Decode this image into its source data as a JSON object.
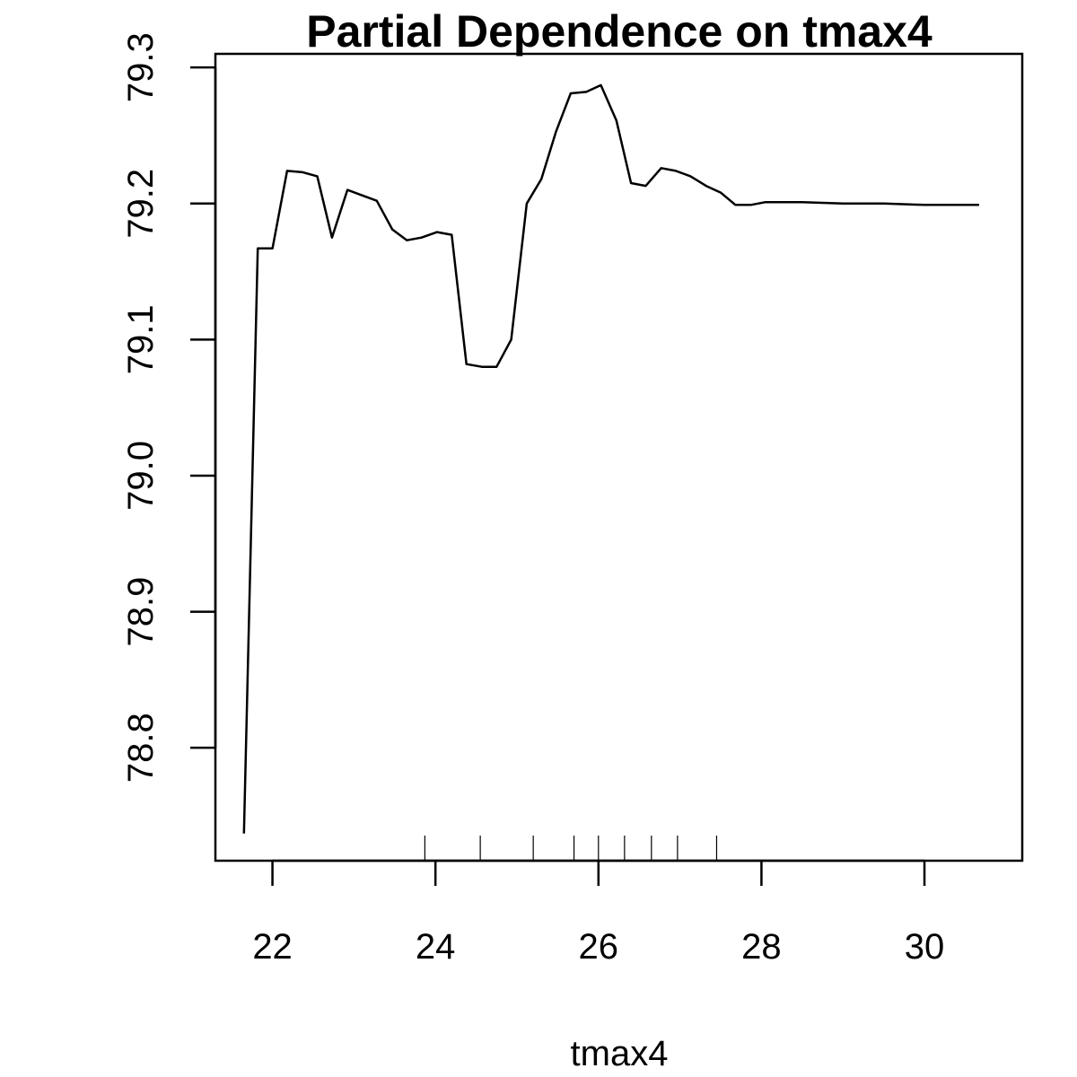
{
  "chart_data": {
    "type": "line",
    "title": "Partial Dependence on tmax4",
    "xlabel": "tmax4",
    "ylabel": "",
    "xlim": [
      21.3,
      31.2
    ],
    "ylim": [
      78.717,
      79.31
    ],
    "x_ticks": [
      22,
      24,
      26,
      28,
      30
    ],
    "y_ticks": [
      78.8,
      78.9,
      79.0,
      79.1,
      79.2,
      79.3
    ],
    "x_tick_labels": [
      "22",
      "24",
      "26",
      "28",
      "30"
    ],
    "y_tick_labels": [
      "78.8",
      "78.9",
      "79.0",
      "79.1",
      "79.2",
      "79.3"
    ],
    "grid": false,
    "series": [
      {
        "x": [
          21.65,
          21.82,
          22.0,
          22.18,
          22.37,
          22.55,
          22.73,
          22.92,
          23.1,
          23.28,
          23.47,
          23.65,
          23.83,
          24.02,
          24.2,
          24.38,
          24.57,
          24.75,
          24.93,
          25.12,
          25.3,
          25.48,
          25.66,
          25.85,
          26.03,
          26.22,
          26.4,
          26.58,
          26.77,
          26.95,
          27.13,
          27.32,
          27.5,
          27.68,
          27.87,
          28.05,
          28.5,
          29.0,
          29.5,
          30.0,
          30.67
        ],
        "y": [
          78.737,
          79.167,
          79.167,
          79.224,
          79.223,
          79.22,
          79.175,
          79.21,
          79.206,
          79.202,
          79.181,
          79.173,
          79.175,
          79.179,
          79.177,
          79.082,
          79.08,
          79.08,
          79.1,
          79.2,
          79.218,
          79.253,
          79.281,
          79.282,
          79.287,
          79.261,
          79.215,
          79.213,
          79.226,
          79.224,
          79.22,
          79.213,
          79.208,
          79.199,
          79.199,
          79.201,
          79.201,
          79.2,
          79.2,
          79.199,
          79.199
        ]
      }
    ],
    "rug": [
      23.87,
      24.55,
      25.2,
      25.7,
      26.0,
      26.32,
      26.65,
      26.97,
      27.45
    ]
  }
}
